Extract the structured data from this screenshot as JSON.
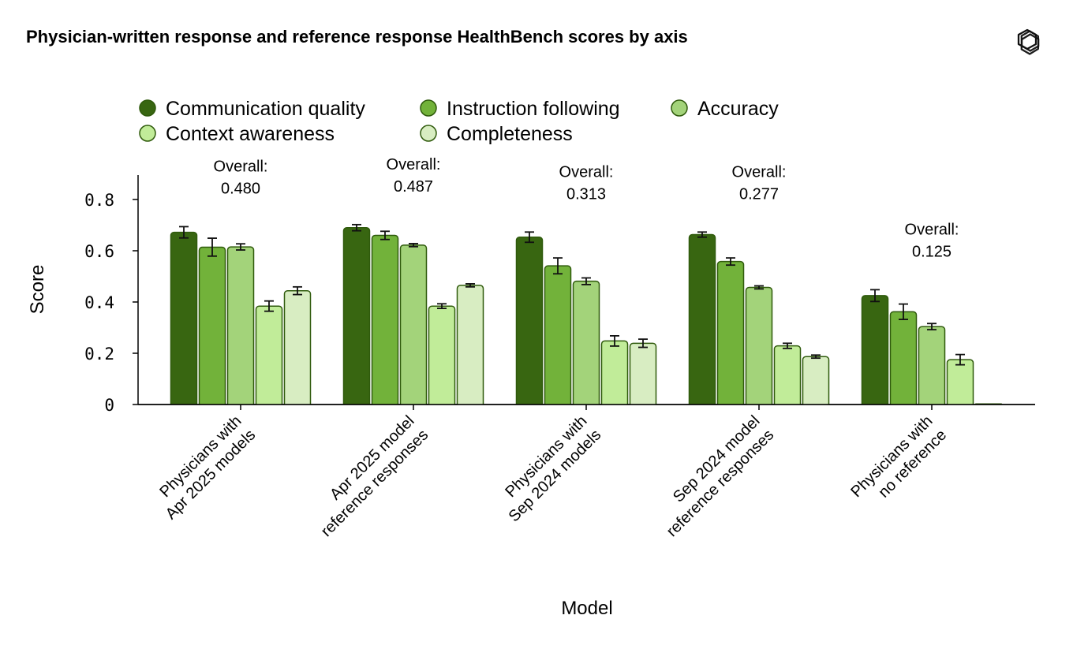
{
  "header": {
    "title": "Physician-written response and reference response HealthBench scores by axis",
    "logo_icon": "openai-logo-icon"
  },
  "chart_data": {
    "type": "bar",
    "title": "Physician-written response and reference response HealthBench scores by axis",
    "xlabel": "Model",
    "ylabel": "Score",
    "ylim": [
      0,
      0.9
    ],
    "yticks": [
      "0",
      "0.2",
      "0.4",
      "0.6",
      "0.8"
    ],
    "ytick_values": [
      0,
      0.2,
      0.4,
      0.6,
      0.8
    ],
    "legend_position": "top-left",
    "categories": [
      [
        "Physicians with",
        "Apr 2025 models"
      ],
      [
        "Apr 2025 model",
        "reference responses"
      ],
      [
        "Physicians with",
        "Sep 2024 models"
      ],
      [
        "Sep 2024 model",
        "reference responses"
      ],
      [
        "Physicians with",
        "no reference"
      ]
    ],
    "overall": [
      [
        "Overall:",
        "0.480"
      ],
      [
        "Overall:",
        "0.487"
      ],
      [
        "Overall:",
        "0.313"
      ],
      [
        "Overall:",
        "0.277"
      ],
      [
        "Overall:",
        "0.125"
      ]
    ],
    "series": [
      {
        "name": "Communication quality",
        "color": "#386611",
        "values": [
          0.672,
          0.69,
          0.653,
          0.663,
          0.425
        ],
        "errors": [
          0.022,
          0.012,
          0.02,
          0.01,
          0.023
        ]
      },
      {
        "name": "Instruction following",
        "color": "#72b23a",
        "values": [
          0.614,
          0.66,
          0.541,
          0.558,
          0.362
        ],
        "errors": [
          0.035,
          0.016,
          0.031,
          0.014,
          0.03
        ]
      },
      {
        "name": "Accuracy",
        "color": "#a3d37a",
        "values": [
          0.615,
          0.622,
          0.481,
          0.457,
          0.304
        ],
        "errors": [
          0.012,
          0.006,
          0.013,
          0.006,
          0.012
        ]
      },
      {
        "name": "Context awareness",
        "color": "#c1ec99",
        "values": [
          0.384,
          0.384,
          0.248,
          0.229,
          0.175
        ],
        "errors": [
          0.02,
          0.009,
          0.02,
          0.01,
          0.02
        ]
      },
      {
        "name": "Completeness",
        "color": "#d8edc2",
        "values": [
          0.444,
          0.465,
          0.239,
          0.187,
          0.002
        ],
        "errors": [
          0.015,
          0.006,
          0.016,
          0.006,
          0.0
        ]
      }
    ],
    "edge_color": "#2f5a0c"
  }
}
